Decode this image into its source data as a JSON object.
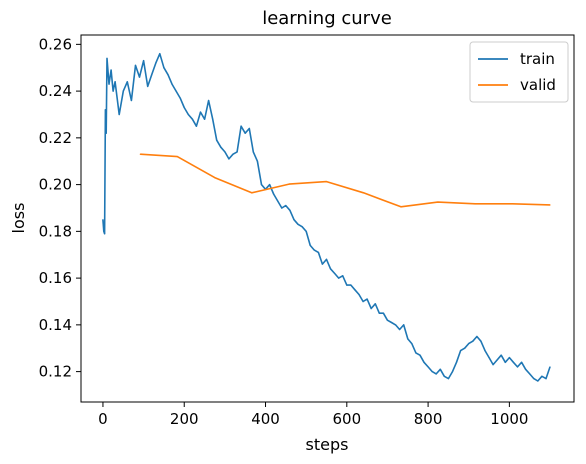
{
  "chart_data": {
    "type": "line",
    "title": "learning curve",
    "xlabel": "steps",
    "ylabel": "loss",
    "xlim": [
      -54,
      1159
    ],
    "ylim": [
      0.107,
      0.264
    ],
    "xticks": [
      0,
      200,
      400,
      600,
      800,
      1000
    ],
    "yticks": [
      0.12,
      0.14,
      0.16,
      0.18,
      0.2,
      0.22,
      0.24,
      0.26
    ],
    "grid": false,
    "legend_position": "top-right",
    "series": [
      {
        "name": "train",
        "color": "#1f77b4",
        "x": [
          0,
          2,
          4,
          6,
          8,
          10,
          15,
          20,
          25,
          30,
          40,
          50,
          60,
          70,
          80,
          90,
          100,
          110,
          120,
          130,
          140,
          150,
          160,
          170,
          180,
          190,
          200,
          210,
          220,
          230,
          240,
          250,
          260,
          270,
          280,
          290,
          300,
          310,
          320,
          330,
          340,
          350,
          360,
          370,
          380,
          390,
          400,
          410,
          420,
          430,
          440,
          450,
          460,
          470,
          480,
          490,
          500,
          510,
          520,
          530,
          540,
          550,
          560,
          570,
          580,
          590,
          600,
          610,
          620,
          630,
          640,
          650,
          660,
          670,
          680,
          690,
          700,
          710,
          720,
          730,
          740,
          750,
          760,
          770,
          780,
          790,
          800,
          810,
          820,
          830,
          840,
          850,
          860,
          870,
          880,
          890,
          900,
          910,
          920,
          930,
          940,
          950,
          960,
          970,
          980,
          990,
          1000,
          1010,
          1020,
          1030,
          1040,
          1050,
          1060,
          1070,
          1080,
          1090,
          1100
        ],
        "values": [
          0.185,
          0.18,
          0.179,
          0.232,
          0.222,
          0.254,
          0.243,
          0.249,
          0.24,
          0.244,
          0.23,
          0.24,
          0.244,
          0.236,
          0.251,
          0.246,
          0.253,
          0.242,
          0.247,
          0.252,
          0.256,
          0.25,
          0.247,
          0.243,
          0.24,
          0.237,
          0.233,
          0.23,
          0.228,
          0.225,
          0.231,
          0.228,
          0.236,
          0.228,
          0.219,
          0.216,
          0.214,
          0.211,
          0.213,
          0.214,
          0.225,
          0.222,
          0.224,
          0.214,
          0.21,
          0.2,
          0.198,
          0.2,
          0.196,
          0.193,
          0.19,
          0.191,
          0.189,
          0.185,
          0.183,
          0.182,
          0.18,
          0.174,
          0.172,
          0.171,
          0.166,
          0.168,
          0.164,
          0.162,
          0.16,
          0.161,
          0.157,
          0.157,
          0.155,
          0.153,
          0.15,
          0.151,
          0.147,
          0.149,
          0.145,
          0.145,
          0.142,
          0.141,
          0.14,
          0.138,
          0.14,
          0.134,
          0.132,
          0.128,
          0.127,
          0.124,
          0.122,
          0.12,
          0.119,
          0.121,
          0.118,
          0.117,
          0.12,
          0.124,
          0.129,
          0.13,
          0.132,
          0.133,
          0.135,
          0.133,
          0.129,
          0.126,
          0.123,
          0.125,
          0.127,
          0.124,
          0.126,
          0.124,
          0.122,
          0.124,
          0.121,
          0.119,
          0.117,
          0.116,
          0.118,
          0.117,
          0.122
        ]
      },
      {
        "name": "valid",
        "color": "#ff7f0e",
        "x": [
          92,
          183,
          275,
          366,
          458,
          550,
          641,
          733,
          824,
          916,
          1008,
          1100
        ],
        "values": [
          0.213,
          0.212,
          0.203,
          0.1965,
          0.2002,
          0.2013,
          0.1965,
          0.1905,
          0.1925,
          0.1918,
          0.1918,
          0.1913
        ]
      }
    ]
  }
}
